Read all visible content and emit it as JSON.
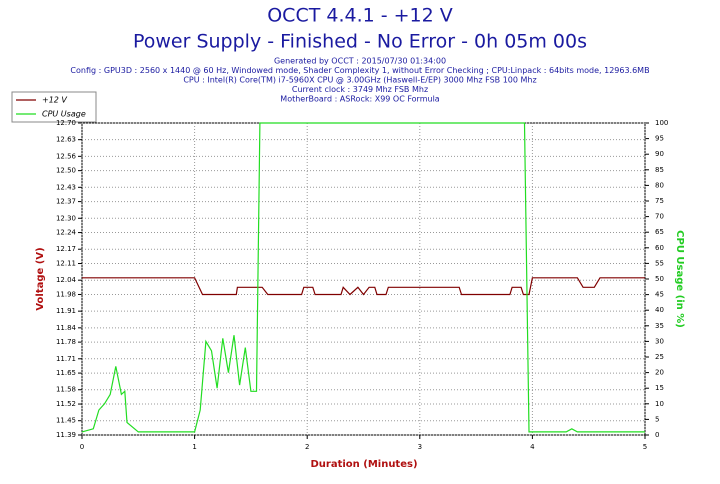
{
  "chart_data": {
    "type": "line",
    "title": "OCCT 4.4.1 - +12 V",
    "subtitle": "Power Supply - Finished - No Error - 0h 05m 00s",
    "info_lines": [
      "Generated by OCCT : 2015/07/30 01:34:00",
      "Config : GPU3D : 2560 x 1440 @ 60 Hz, Windowed mode, Shader Complexity 1, without Error Checking ; CPU:Linpack : 64bits mode, 12963.6MB",
      "CPU : Intel(R) Core(TM) i7-5960X CPU @ 3.00GHz (Haswell-E/EP) 3000 Mhz FSB 100 Mhz",
      "Current clock : 3749 Mhz FSB  Mhz",
      "MotherBoard : ASRock: X99 OC Formula"
    ],
    "xlabel": "Duration (Minutes)",
    "ylabel": "Voltage (V)",
    "y2label": "CPU Usage (in %)",
    "xlim": [
      0,
      5
    ],
    "xticks": [
      0,
      1,
      2,
      3,
      4,
      5
    ],
    "ylim": [
      11.39,
      12.7
    ],
    "yticks": [
      11.39,
      11.45,
      11.52,
      11.58,
      11.65,
      11.71,
      11.78,
      11.84,
      11.91,
      11.98,
      12.04,
      12.11,
      12.17,
      12.24,
      {
        "value": 12.3,
        "label": "12.30"
      },
      12.37,
      12.43,
      {
        "value": 12.5,
        "label": "12.50"
      },
      12.56,
      12.63,
      {
        "value": 12.7,
        "label": "12.70"
      }
    ],
    "y2lim": [
      0,
      100
    ],
    "y2ticks": [
      0,
      5,
      10,
      15,
      20,
      25,
      30,
      35,
      40,
      45,
      50,
      55,
      60,
      65,
      70,
      75,
      80,
      85,
      90,
      95,
      100
    ],
    "grid": true,
    "series": [
      {
        "name": "+12 V",
        "color": "#800000",
        "axis": "y",
        "x": [
          0,
          1.0,
          1.07,
          1.37,
          1.38,
          1.6,
          1.65,
          1.95,
          1.97,
          2.05,
          2.07,
          2.3,
          2.32,
          2.38,
          2.45,
          2.5,
          2.55,
          2.6,
          2.62,
          2.7,
          2.72,
          3.35,
          3.37,
          3.8,
          3.82,
          3.9,
          3.92,
          3.97,
          4.0,
          4.4,
          4.45,
          4.55,
          4.6,
          5
        ],
        "values": [
          12.05,
          12.05,
          11.98,
          11.98,
          12.01,
          12.01,
          11.98,
          11.98,
          12.01,
          12.01,
          11.98,
          11.98,
          12.01,
          11.98,
          12.01,
          11.98,
          12.01,
          12.01,
          11.98,
          11.98,
          12.01,
          12.01,
          11.98,
          11.98,
          12.01,
          12.01,
          11.98,
          11.98,
          12.05,
          12.05,
          12.01,
          12.01,
          12.05,
          12.05
        ]
      },
      {
        "name": "CPU Usage",
        "color": "#22dd22",
        "axis": "y2",
        "x": [
          0,
          0.1,
          0.15,
          0.2,
          0.25,
          0.3,
          0.35,
          0.38,
          0.4,
          0.5,
          1.0,
          1.05,
          1.1,
          1.15,
          1.2,
          1.25,
          1.3,
          1.35,
          1.4,
          1.45,
          1.5,
          1.55,
          1.58,
          2.0,
          3.5,
          3.93,
          3.97,
          4.3,
          4.35,
          4.4,
          5
        ],
        "values": [
          1,
          2,
          8,
          10,
          13,
          22,
          13,
          14,
          4,
          1,
          1,
          8,
          30,
          27,
          15,
          31,
          20,
          32,
          16,
          28,
          14,
          14,
          100,
          100,
          100,
          100,
          1,
          1,
          2,
          1,
          1
        ]
      }
    ]
  }
}
